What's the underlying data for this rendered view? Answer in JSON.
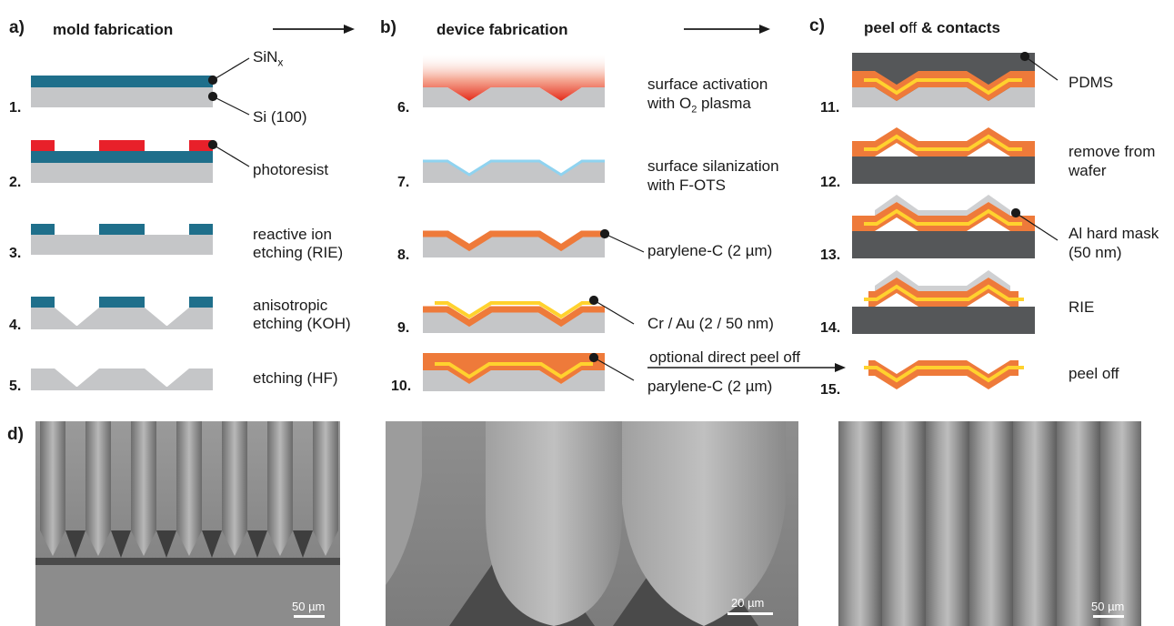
{
  "panels": {
    "a": {
      "letter": "a)",
      "title": "mold fabrication"
    },
    "b": {
      "letter": "b)",
      "title": "device fabrication"
    },
    "c": {
      "letter": "c)",
      "title_pre": "peel o",
      "title_ff": "ff",
      "title_post": " & contacts"
    },
    "d": {
      "letter": "d)"
    }
  },
  "steps": {
    "s1": "1.",
    "s2": "2.",
    "s3": "3.",
    "s4": "4.",
    "s5": "5.",
    "s6": "6.",
    "s7": "7.",
    "s8": "8.",
    "s9": "9.",
    "s10": "10.",
    "s11": "11.",
    "s12": "12.",
    "s13": "13.",
    "s14": "14.",
    "s15": "15."
  },
  "labels": {
    "sin_main": "SiN",
    "sin_sub": "x",
    "si": "Si (100)",
    "photoresist": "photoresist",
    "rie_1": "reactive ion",
    "rie_2": "etching (RIE)",
    "koh_1": "anisotropic",
    "koh_2": "etching (KOH)",
    "hf": "etching (HF)",
    "act_1": "surface activation",
    "act_2_pre": "with O",
    "act_2_sub": "2",
    "act_2_post": " plasma",
    "sil_1": "surface silanization",
    "sil_2": "with F-OTS",
    "parylene_1": "parylene-C (2 µm)",
    "crau": "Cr / Au (2 / 50 nm)",
    "parylene_2": "parylene-C (2 µm)",
    "optional": "optional direct peel off",
    "pdms": "PDMS",
    "remove_1": "remove from",
    "remove_2": "wafer",
    "al_1": "Al hard mask",
    "al_2": "(50 nm)",
    "rie": "RIE",
    "peel": "peel off"
  },
  "scalebars": {
    "img1": "50 µm",
    "img2": "20 µm",
    "img3": "50 µm"
  },
  "colors": {
    "si": "#c5c6c8",
    "sin": "#1f6f8b",
    "photoresist": "#e8202a",
    "plasma": "#e63a24",
    "silane": "#8fd3f0",
    "parylene": "#ee7a3a",
    "gold": "#ffd22e",
    "pdms": "#555759",
    "al": "#cfd0d2",
    "sem_bg": "#8a8a8a"
  }
}
